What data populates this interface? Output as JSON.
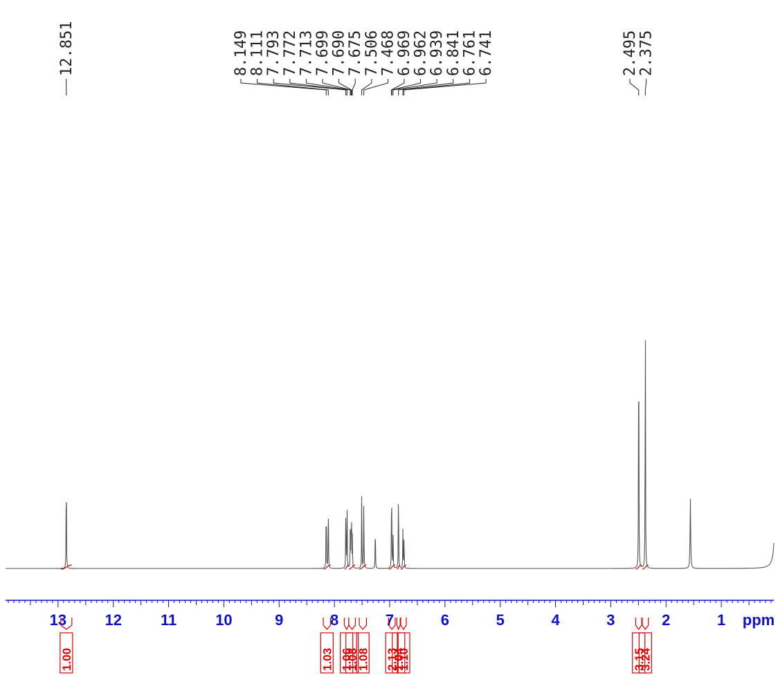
{
  "chart_data": {
    "type": "line",
    "title": "",
    "xlabel": "ppm",
    "ylabel": "",
    "xlim": [
      13.95,
      0.05
    ],
    "x_reversed": true,
    "ticks": [
      "13",
      "12",
      "11",
      "10",
      "9",
      "8",
      "7",
      "6",
      "5",
      "4",
      "3",
      "2",
      "1"
    ],
    "tick_values": [
      13,
      12,
      11,
      10,
      9,
      8,
      7,
      6,
      5,
      4,
      3,
      2,
      1
    ],
    "colors": {
      "spectrum": "#555555",
      "axis": "#1010cc",
      "integral": "#dd0000",
      "label": "#222222"
    },
    "peaks": [
      {
        "ppm": 12.851,
        "height": 0.26
      },
      {
        "ppm": 8.149,
        "height": 0.168
      },
      {
        "ppm": 8.111,
        "height": 0.18
      },
      {
        "ppm": 7.793,
        "height": 0.15
      },
      {
        "ppm": 7.772,
        "height": 0.16
      },
      {
        "ppm": 7.713,
        "height": 0.08
      },
      {
        "ppm": 7.699,
        "height": 0.1
      },
      {
        "ppm": 7.69,
        "height": 0.095
      },
      {
        "ppm": 7.675,
        "height": 0.075
      },
      {
        "ppm": 7.506,
        "height": 0.17
      },
      {
        "ppm": 7.468,
        "height": 0.162
      },
      {
        "ppm": 7.26,
        "height": 0.115
      },
      {
        "ppm": 6.969,
        "height": 0.09
      },
      {
        "ppm": 6.962,
        "height": 0.11
      },
      {
        "ppm": 6.939,
        "height": 0.085
      },
      {
        "ppm": 6.841,
        "height": 0.215
      },
      {
        "ppm": 6.761,
        "height": 0.09
      },
      {
        "ppm": 6.741,
        "height": 0.087
      },
      {
        "ppm": 2.495,
        "height": 0.68
      },
      {
        "ppm": 2.375,
        "height": 0.678
      },
      {
        "ppm": 1.56,
        "height": 0.15
      },
      {
        "ppm": 0.0,
        "height": 0.98
      }
    ],
    "peak_labels": [
      "12.851",
      "8.149",
      "8.111",
      "7.793",
      "7.772",
      "7.713",
      "7.699",
      "7.690",
      "7.675",
      "7.506",
      "7.468",
      "6.969",
      "6.962",
      "6.939",
      "6.841",
      "6.761",
      "6.741",
      "2.495",
      "2.375"
    ],
    "integrals": [
      {
        "label": "1.00",
        "from": 12.95,
        "to": 12.75
      },
      {
        "label": "1.03",
        "from": 8.2,
        "to": 8.07
      },
      {
        "label": "1.06",
        "from": 7.82,
        "to": 7.74
      },
      {
        "label": "1.08",
        "from": 7.74,
        "to": 7.62
      },
      {
        "label": "1.08",
        "from": 7.55,
        "to": 7.42
      },
      {
        "label": "2.13",
        "from": 7.02,
        "to": 6.9
      },
      {
        "label": "1.04",
        "from": 6.87,
        "to": 6.81
      },
      {
        "label": "1.10",
        "from": 6.8,
        "to": 6.7
      },
      {
        "label": "3.15",
        "from": 2.55,
        "to": 2.44
      },
      {
        "label": "3.24",
        "from": 2.43,
        "to": 2.32
      }
    ]
  }
}
